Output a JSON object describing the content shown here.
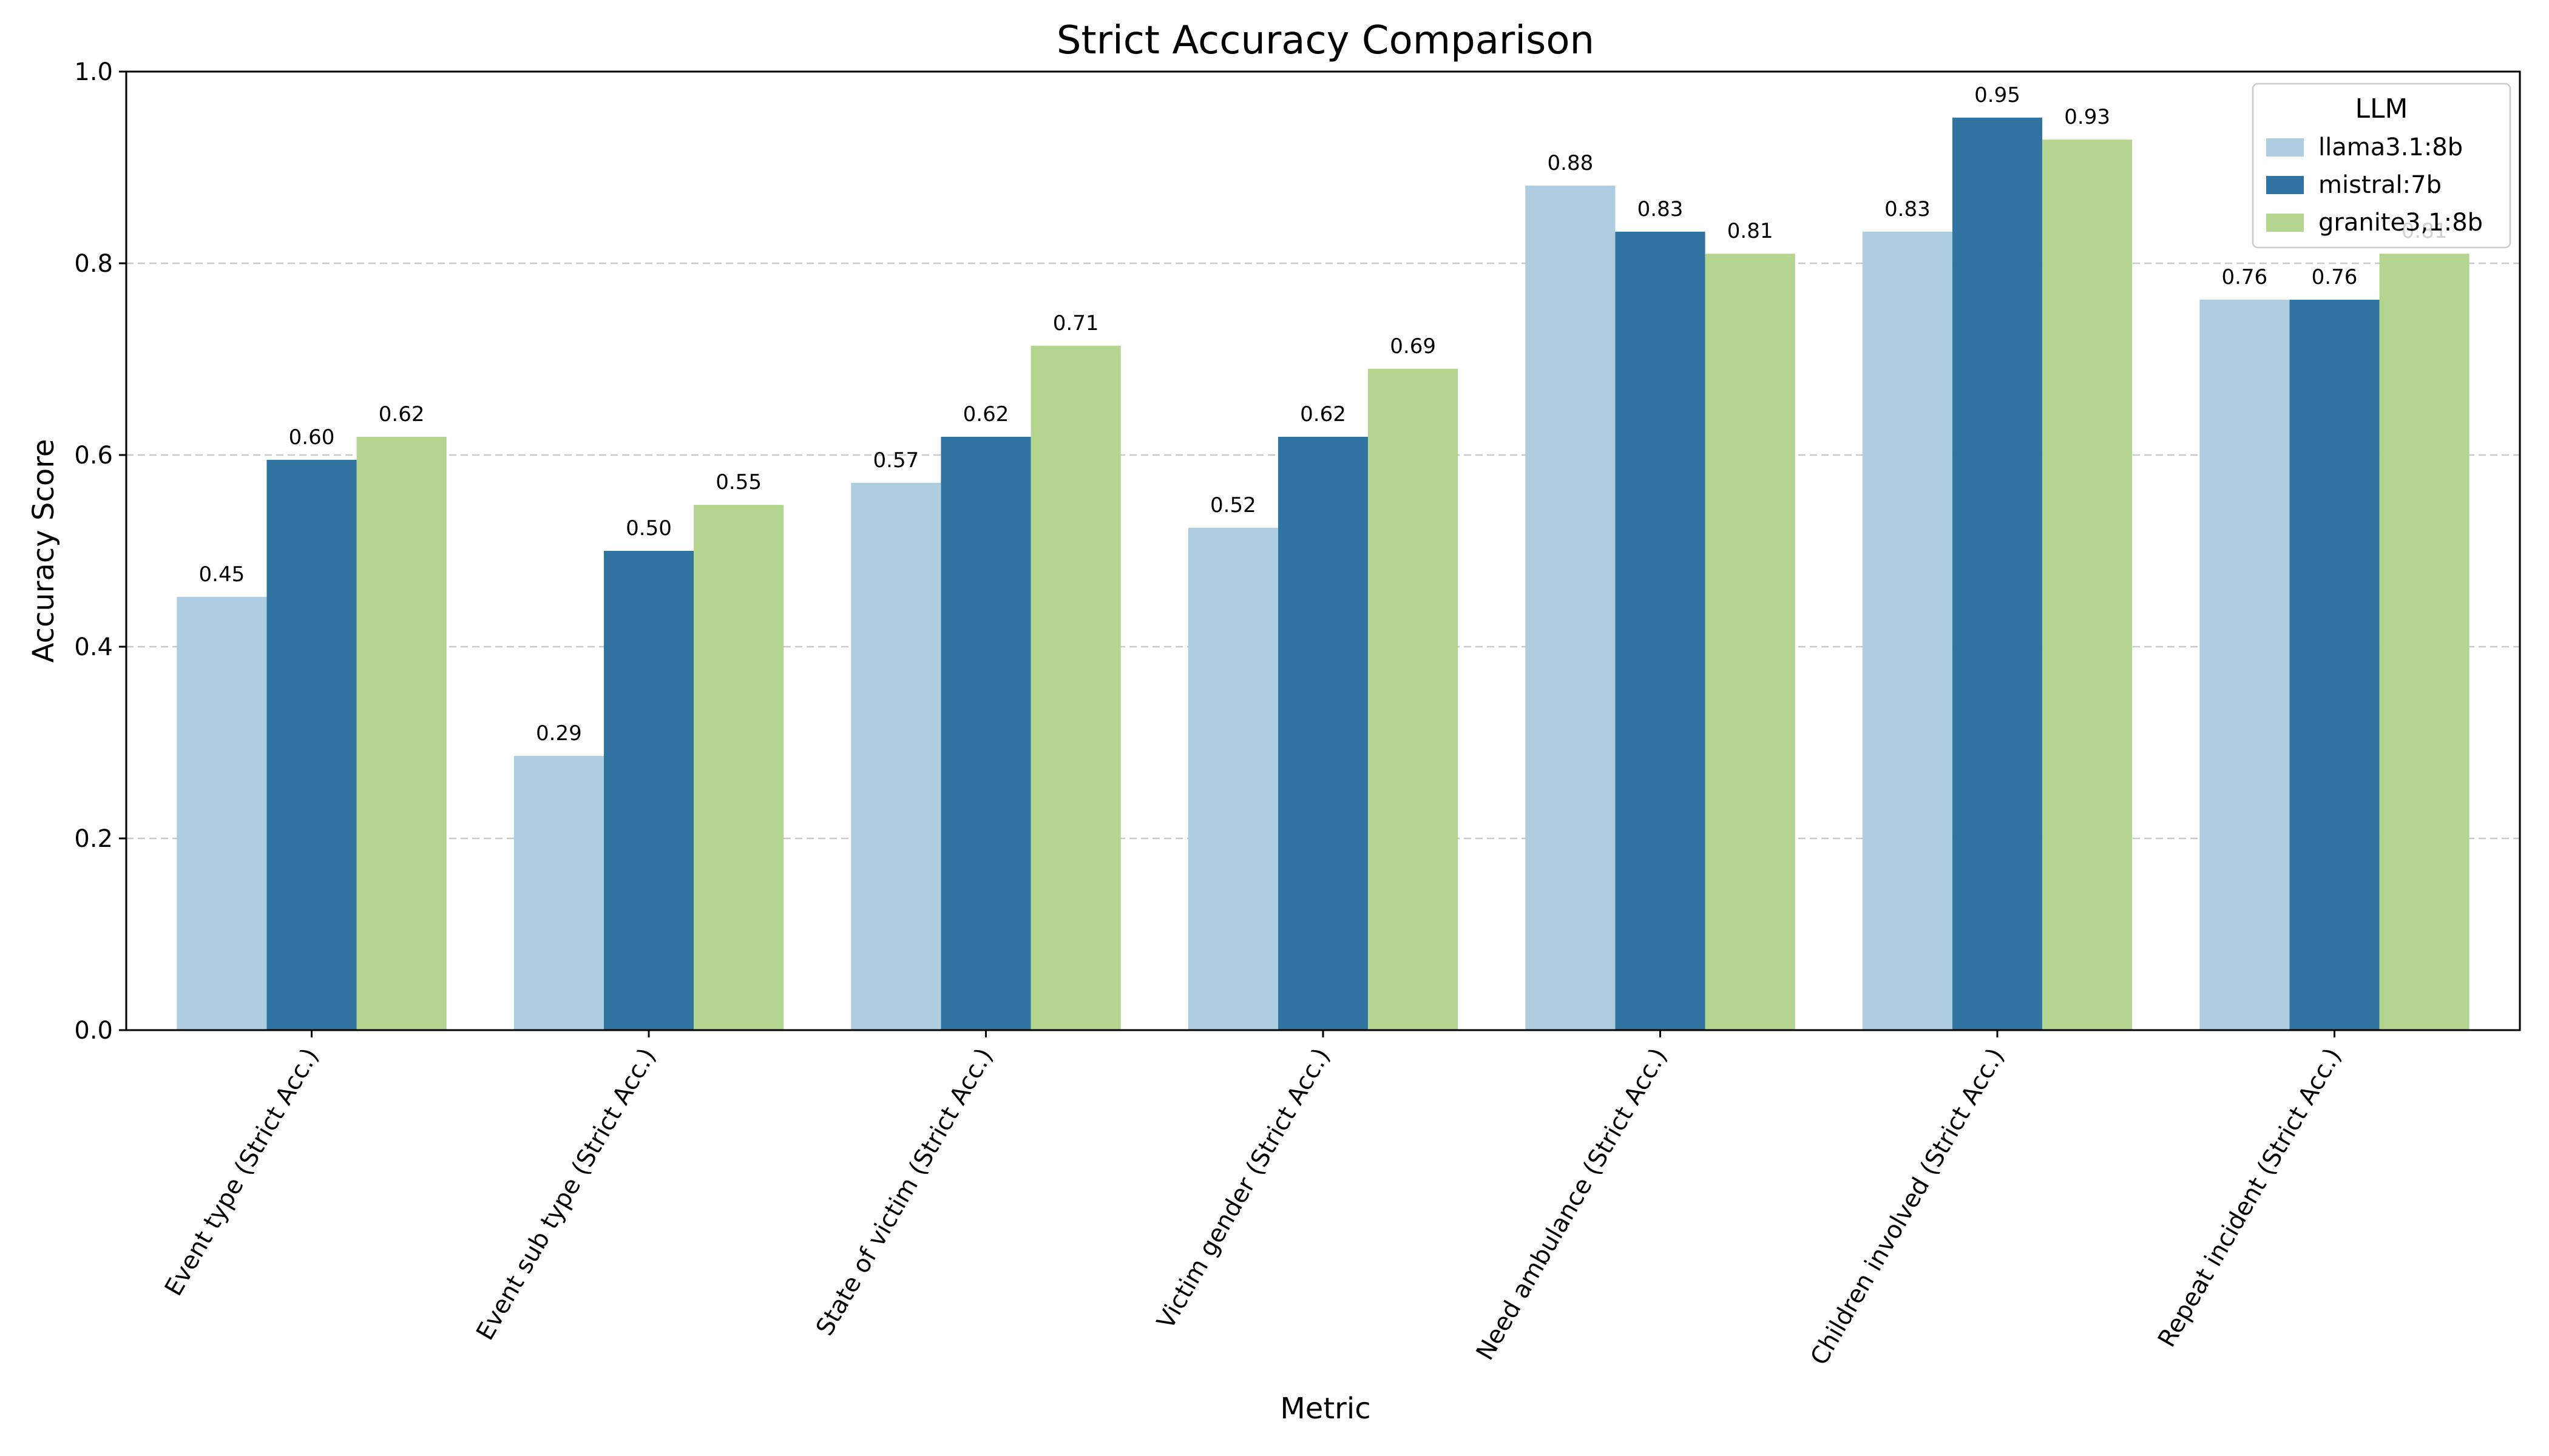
{
  "chart_data": {
    "type": "bar",
    "title": "Strict Accuracy Comparison",
    "xlabel": "Metric",
    "ylabel": "Accuracy Score",
    "ylim": [
      0,
      1.0
    ],
    "yticks": [
      "0.0",
      "0.2",
      "0.4",
      "0.6",
      "0.8",
      "1.0"
    ],
    "grid": "y-dashed",
    "categories": [
      "Event type (Strict Acc.)",
      "Event sub type (Strict Acc.)",
      "State of victim (Strict Acc.)",
      "Victim gender (Strict Acc.)",
      "Need ambulance (Strict Acc.)",
      "Children involved (Strict Acc.)",
      "Repeat incident (Strict Acc.)"
    ],
    "legend": {
      "title": "LLM",
      "placement": "top-right"
    },
    "series": [
      {
        "name": "llama3.1:8b",
        "color": "#aecde1",
        "values": [
          0.452,
          0.286,
          0.571,
          0.524,
          0.881,
          0.833,
          0.762
        ],
        "labels": [
          "0.45",
          "0.29",
          "0.57",
          "0.52",
          "0.88",
          "0.83",
          "0.76"
        ]
      },
      {
        "name": "mistral:7b",
        "color": "#3274a1",
        "values": [
          0.595,
          0.5,
          0.619,
          0.619,
          0.833,
          0.952,
          0.762
        ],
        "labels": [
          "0.60",
          "0.50",
          "0.62",
          "0.62",
          "0.83",
          "0.95",
          "0.76"
        ]
      },
      {
        "name": "granite3,1:8b",
        "color": "#b3d590",
        "values": [
          0.619,
          0.548,
          0.714,
          0.69,
          0.81,
          0.929,
          0.81
        ],
        "labels": [
          "0.62",
          "0.55",
          "0.71",
          "0.69",
          "0.81",
          "0.93",
          "0.81"
        ]
      }
    ]
  }
}
